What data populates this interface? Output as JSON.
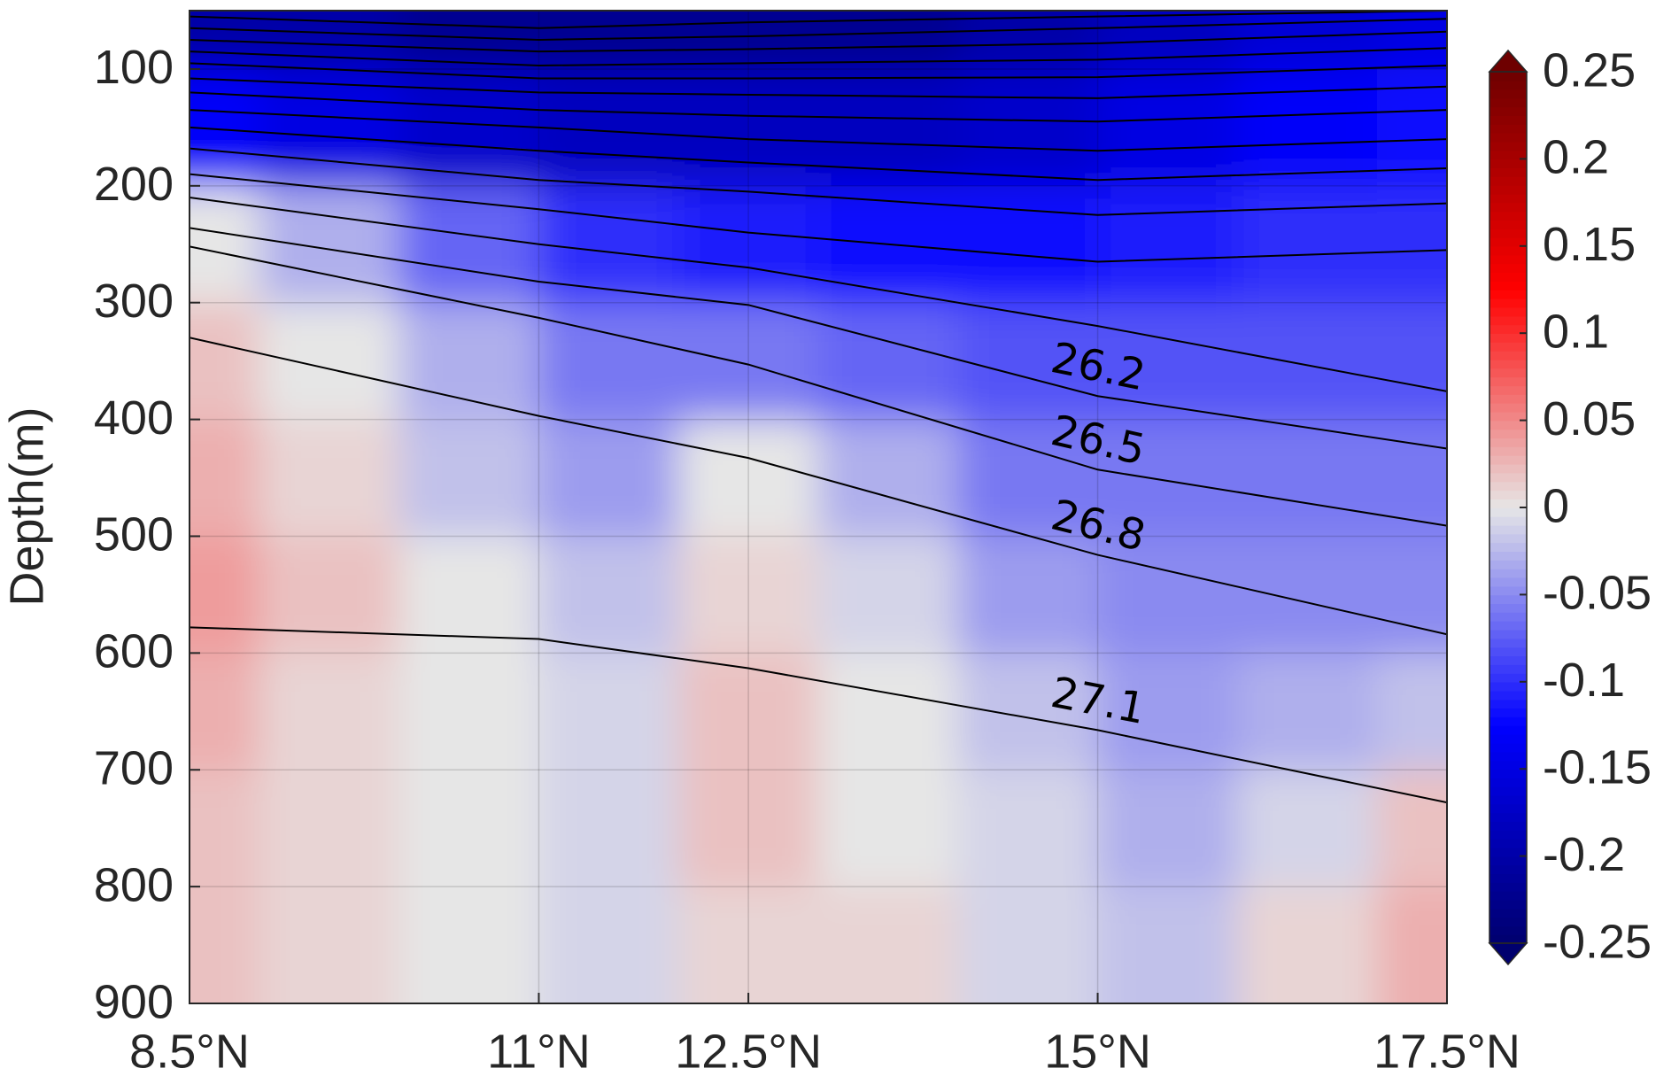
{
  "chart_data": {
    "type": "contour",
    "ylabel": "Depth(m)",
    "xlim": [
      8.5,
      17.5
    ],
    "xticks": [
      {
        "value": 8.5,
        "label": "8.5°N"
      },
      {
        "value": 11,
        "label": "11°N"
      },
      {
        "value": 12.5,
        "label": "12.5°N"
      },
      {
        "value": 15,
        "label": "15°N"
      },
      {
        "value": 17.5,
        "label": "17.5°N"
      }
    ],
    "ylim": [
      50,
      900
    ],
    "y_reversed": true,
    "yticks": [
      100,
      200,
      300,
      400,
      500,
      600,
      700,
      800,
      900
    ],
    "grid": true,
    "clim": [
      -0.25,
      0.25
    ],
    "colormap": [
      "#00006e",
      "#0000ff",
      "#e6e6e6",
      "#ff0000",
      "#6e0000"
    ],
    "cticks": [
      0.25,
      0.2,
      0.15,
      0.1,
      0.05,
      0,
      -0.05,
      -0.1,
      -0.15,
      -0.2,
      -0.25
    ],
    "field": {
      "x": [
        8.5,
        9.5,
        10.5,
        11.5,
        12.5,
        13.5,
        14.5,
        15.5,
        16.5,
        17.5
      ],
      "depth": [
        50,
        150,
        250,
        350,
        450,
        550,
        650,
        750,
        850
      ],
      "z": [
        [
          -0.2,
          -0.2,
          -0.22,
          -0.22,
          -0.22,
          -0.22,
          -0.2,
          -0.18,
          -0.16,
          -0.15
        ],
        [
          -0.13,
          -0.15,
          -0.17,
          -0.18,
          -0.18,
          -0.18,
          -0.17,
          -0.15,
          -0.13,
          -0.12
        ],
        [
          0,
          -0.03,
          -0.07,
          -0.1,
          -0.11,
          -0.12,
          -0.12,
          -0.11,
          -0.1,
          -0.1
        ],
        [
          0.02,
          0,
          -0.03,
          -0.06,
          -0.06,
          -0.07,
          -0.08,
          -0.08,
          -0.08,
          -0.08
        ],
        [
          0.03,
          0.01,
          -0.02,
          -0.04,
          0,
          -0.03,
          -0.06,
          -0.06,
          -0.06,
          -0.06
        ],
        [
          0.04,
          0.02,
          0,
          -0.02,
          0.01,
          -0.01,
          -0.04,
          -0.05,
          -0.05,
          -0.05
        ],
        [
          0.03,
          0.01,
          0,
          -0.01,
          0.02,
          0,
          -0.02,
          -0.04,
          -0.03,
          -0.02
        ],
        [
          0.02,
          0.01,
          0,
          -0.01,
          0.02,
          0,
          -0.01,
          -0.03,
          -0.01,
          0.02
        ],
        [
          0.02,
          0.01,
          0,
          -0.01,
          0.01,
          0.01,
          -0.01,
          -0.02,
          0.01,
          0.03
        ]
      ]
    },
    "isopycnal_x": [
      8.5,
      11,
      12.5,
      15,
      17.5
    ],
    "isopycnal_label_x": 15,
    "isopycnals": [
      {
        "values": [
          55,
          65,
          60,
          55,
          50
        ]
      },
      {
        "values": [
          65,
          75,
          72,
          65,
          57
        ]
      },
      {
        "values": [
          75,
          85,
          83,
          78,
          68
        ]
      },
      {
        "values": [
          85,
          97,
          95,
          92,
          82
        ]
      },
      {
        "values": [
          95,
          108,
          108,
          107,
          97
        ]
      },
      {
        "values": [
          108,
          120,
          122,
          125,
          115
        ]
      },
      {
        "values": [
          120,
          135,
          140,
          145,
          135
        ]
      },
      {
        "values": [
          135,
          150,
          160,
          170,
          160
        ]
      },
      {
        "values": [
          150,
          170,
          180,
          195,
          185
        ]
      },
      {
        "values": [
          168,
          195,
          205,
          225,
          215
        ]
      },
      {
        "values": [
          190,
          220,
          240,
          265,
          255
        ]
      },
      {
        "values": [
          210,
          250,
          270,
          320,
          376
        ]
      },
      {
        "label": "26.2",
        "values": [
          236,
          282,
          302,
          380,
          425
        ]
      },
      {
        "label": "26.5",
        "values": [
          252,
          313,
          353,
          443,
          491
        ]
      },
      {
        "label": "26.8",
        "values": [
          330,
          397,
          433,
          516,
          584
        ]
      },
      {
        "label": "27.1",
        "values": [
          578,
          588,
          613,
          666,
          728
        ]
      }
    ]
  }
}
